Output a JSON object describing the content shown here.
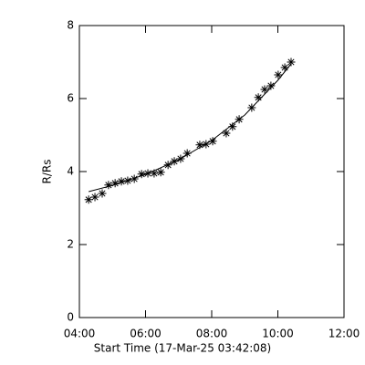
{
  "chart_data": {
    "type": "scatter",
    "xlabel": "Start Time (17-Mar-25 03:42:08)",
    "ylabel": "R/Rs",
    "xlim": [
      4,
      12
    ],
    "xticks": [
      {
        "value": 4,
        "label": "04:00"
      },
      {
        "value": 6,
        "label": "06:00"
      },
      {
        "value": 8,
        "label": "08:00"
      },
      {
        "value": 10,
        "label": "10:00"
      },
      {
        "value": 12,
        "label": "12:00"
      }
    ],
    "ylim": [
      0,
      8
    ],
    "yticks": [
      0,
      2,
      4,
      6,
      8
    ],
    "series": [
      {
        "marker": "asterisk",
        "color": "#000000",
        "x": [
          4.28,
          4.47,
          4.69,
          4.88,
          5.08,
          5.27,
          5.46,
          5.66,
          5.88,
          6.07,
          6.26,
          6.46,
          6.68,
          6.87,
          7.06,
          7.26,
          7.64,
          7.83,
          8.03,
          8.44,
          8.63,
          8.83,
          9.21,
          9.41,
          9.6,
          9.79,
          10.01,
          10.21,
          10.4
        ],
        "values": [
          3.23,
          3.3,
          3.4,
          3.63,
          3.68,
          3.73,
          3.75,
          3.8,
          3.93,
          3.95,
          3.95,
          3.98,
          4.18,
          4.28,
          4.35,
          4.5,
          4.73,
          4.75,
          4.83,
          5.05,
          5.23,
          5.43,
          5.75,
          6.03,
          6.25,
          6.35,
          6.65,
          6.85,
          7.0
        ]
      },
      {
        "marker": "line",
        "color": "#000000",
        "x": [
          4.28,
          5.0,
          6.0,
          7.0,
          8.0,
          9.0,
          10.0,
          10.4
        ],
        "values": [
          3.45,
          3.62,
          3.92,
          4.32,
          4.85,
          5.55,
          6.5,
          6.95
        ]
      }
    ]
  }
}
